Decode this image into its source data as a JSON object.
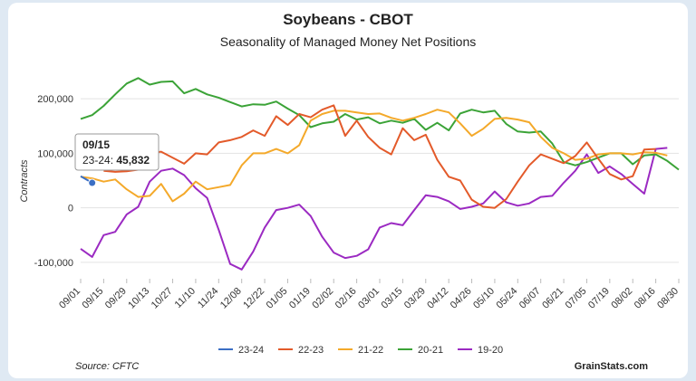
{
  "chart_data": {
    "type": "line",
    "title": "Soybeans - CBOT",
    "subtitle": "Seasonality of Managed Money Net Positions",
    "ylabel": "Contracts",
    "xlabel": "",
    "ylim": [
      -130000,
      260000
    ],
    "yticks": [
      -100000,
      0,
      100000,
      200000
    ],
    "ytick_labels": [
      "-100,000",
      "0",
      "100,000",
      "200,000"
    ],
    "xtick_labels": [
      "09/01",
      "09/15",
      "09/29",
      "10/13",
      "10/27",
      "11/10",
      "11/24",
      "12/08",
      "12/22",
      "01/05",
      "01/19",
      "02/02",
      "02/16",
      "03/01",
      "03/15",
      "03/29",
      "04/12",
      "04/26",
      "05/10",
      "05/24",
      "06/07",
      "06/21",
      "07/05",
      "07/19",
      "08/02",
      "08/16",
      "08/30"
    ],
    "num_weeks": 53,
    "grid": true,
    "legend_position": "bottom",
    "series": [
      {
        "name": "23-24",
        "color": "#3b6fc4",
        "values": [
          58000,
          45832
        ]
      },
      {
        "name": "22-23",
        "color": "#e35a2a",
        "values": [
          null,
          null,
          68000,
          66000,
          67000,
          70000,
          100000,
          103000,
          92000,
          81000,
          100000,
          98000,
          120000,
          124000,
          130000,
          142000,
          132000,
          168000,
          152000,
          172000,
          166000,
          180000,
          188000,
          132000,
          160000,
          130000,
          110000,
          98000,
          146000,
          124000,
          134000,
          88000,
          57000,
          50000,
          15000,
          2000,
          0,
          16000,
          48000,
          78000,
          98000,
          90000,
          82000,
          95000,
          120000,
          90000,
          62000,
          52000,
          58000,
          107000,
          108000
        ]
      },
      {
        "name": "21-22",
        "color": "#f4a92a",
        "values": [
          57000,
          54000,
          48000,
          52000,
          34000,
          20000,
          22000,
          44000,
          12000,
          26000,
          48000,
          34000,
          38000,
          42000,
          78000,
          100000,
          100000,
          108000,
          100000,
          115000,
          160000,
          172000,
          178000,
          178000,
          175000,
          172000,
          173000,
          165000,
          160000,
          165000,
          172000,
          180000,
          175000,
          155000,
          132000,
          145000,
          163000,
          165000,
          162000,
          157000,
          130000,
          110000,
          100000,
          88000,
          90000,
          98000,
          100000,
          100000,
          98000,
          102000,
          101000,
          96000
        ]
      },
      {
        "name": "20-21",
        "color": "#3ba337",
        "values": [
          163000,
          170000,
          187000,
          208000,
          228000,
          238000,
          226000,
          231000,
          232000,
          210000,
          218000,
          208000,
          202000,
          194000,
          186000,
          190000,
          189000,
          195000,
          182000,
          170000,
          148000,
          155000,
          158000,
          172000,
          162000,
          166000,
          155000,
          160000,
          156000,
          163000,
          143000,
          156000,
          142000,
          173000,
          180000,
          175000,
          178000,
          154000,
          140000,
          138000,
          140000,
          118000,
          84000,
          78000,
          84000,
          92000,
          100000,
          100000,
          80000,
          96000,
          98000,
          86000,
          70000
        ]
      },
      {
        "name": "19-20",
        "color": "#9b2ac2",
        "values": [
          -75000,
          -90000,
          -50000,
          -44000,
          -12000,
          2000,
          48000,
          68000,
          72000,
          60000,
          36000,
          18000,
          -40000,
          -103000,
          -113000,
          -80000,
          -36000,
          -4000,
          0,
          6000,
          -15000,
          -53000,
          -82000,
          -92000,
          -88000,
          -76000,
          -36000,
          -28000,
          -32000,
          -4000,
          23000,
          20000,
          12000,
          -2000,
          2000,
          8000,
          30000,
          10000,
          4000,
          8000,
          20000,
          22000,
          46000,
          68000,
          98000,
          64000,
          76000,
          62000,
          44000,
          26000,
          108000,
          110000
        ]
      }
    ],
    "tooltip": {
      "date": "09/15",
      "series": "23-24",
      "value_label": "45,832"
    }
  },
  "footer": {
    "source": "Source: CFTC",
    "brand": "GrainStats.com"
  }
}
